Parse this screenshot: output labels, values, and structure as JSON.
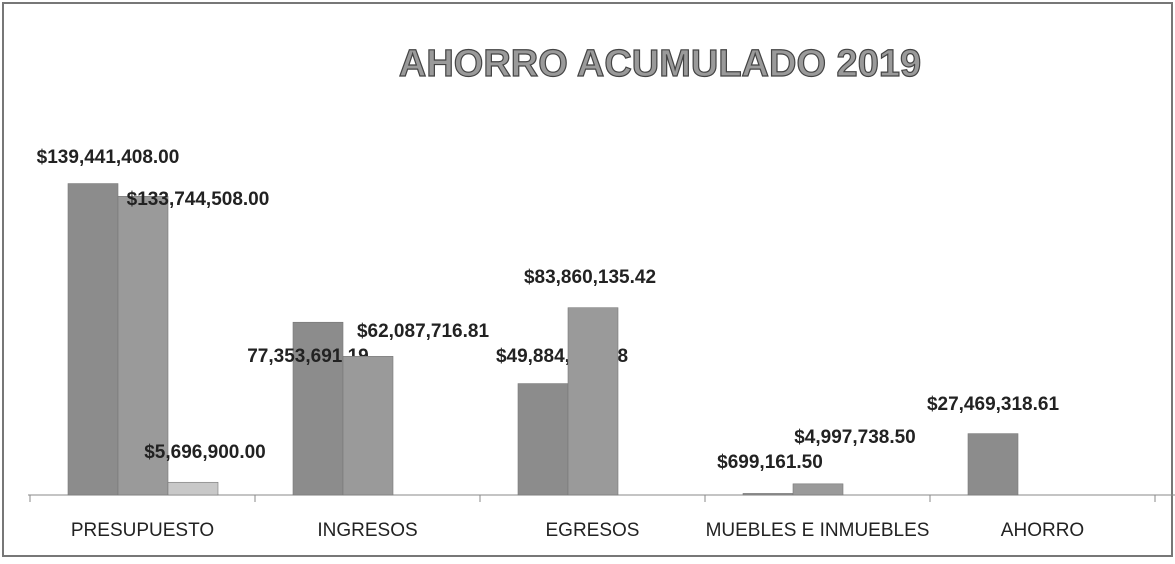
{
  "chart_data": {
    "type": "bar",
    "title": "AHORRO ACUMULADO 2019",
    "categories": [
      "PRESUPUESTO",
      "INGRESOS",
      "EGRESOS",
      "MUEBLES E INMUEBLES",
      "AHORRO"
    ],
    "series": [
      {
        "color": "#8c8c8c",
        "values": [
          139441408.0,
          77353691.19,
          49884372.58,
          699161.5,
          27469318.61
        ],
        "value_labels": [
          "$139,441,408.00",
          "77,353,691.19",
          "$49,884,372.58",
          "$699,161.50",
          "$27,469,318.61"
        ]
      },
      {
        "color": "#9a9a9a",
        "values": [
          133744508.0,
          62087716.81,
          83860135.42,
          4997738.5,
          null
        ],
        "value_labels": [
          "$133,744,508.00",
          "$62,087,716.81",
          "$83,860,135.42",
          "$4,997,738.50",
          null
        ]
      },
      {
        "color": "#c8c8c8",
        "values": [
          5696900.0,
          null,
          null,
          null,
          null
        ],
        "value_labels": [
          "$5,696,900.00",
          null,
          null,
          null,
          null
        ]
      }
    ],
    "ylim": [
      0,
      150000000
    ],
    "grid": false
  }
}
